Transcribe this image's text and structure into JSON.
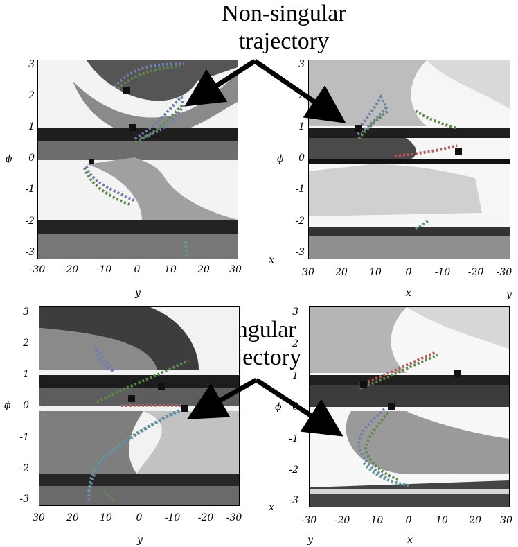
{
  "callouts": {
    "top_line1": "Non-singular",
    "top_line2": "trajectory",
    "bottom_line1": "Singular",
    "bottom_line2": "trajectory"
  },
  "axis_symbols": {
    "phi": "ϕ",
    "x": "x",
    "y": "y"
  },
  "phi_ticks": [
    "3",
    "2",
    "1",
    "0",
    "-1",
    "-2",
    "-3"
  ],
  "panels": {
    "top_left": {
      "ticks": [
        "-30",
        "-20",
        "-10",
        "0",
        "10",
        "20",
        "30"
      ],
      "axis_label": "y"
    },
    "top_right": {
      "ticks": [
        "30",
        "20",
        "10",
        "0",
        "-10",
        "-20",
        "-30"
      ],
      "axis_label": "x",
      "corner_label": "y"
    },
    "bottom_left": {
      "ticks": [
        "30",
        "20",
        "10",
        "0",
        "-10",
        "-20",
        "-30"
      ],
      "axis_label": "y"
    },
    "bottom_right": {
      "ticks": [
        "-30",
        "-20",
        "-10",
        "0",
        "10",
        "20",
        "30"
      ],
      "axis_label": "x",
      "corner_label": "y"
    }
  },
  "colors": {
    "surface_dark": "#2f2f2f",
    "surface_light": "#e8e8e8",
    "trajectory_blue": "#6f7fa8",
    "trajectory_green": "#5f8a4f",
    "trajectory_red": "#b35a5a",
    "trajectory_teal": "#5f9a9a",
    "marker": "#111111"
  }
}
